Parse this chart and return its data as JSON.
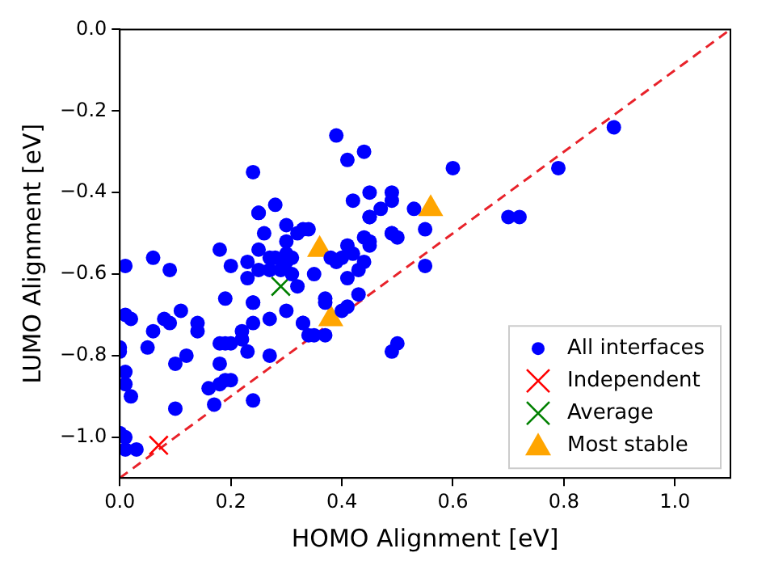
{
  "chart_data": {
    "type": "scatter",
    "xlabel": "HOMO Alignment [eV]",
    "ylabel": "LUMO Alignment [eV]",
    "xlim": [
      0,
      1.1
    ],
    "ylim": [
      -1.1,
      0
    ],
    "xticks": [
      {
        "value": 0,
        "label": "0.0"
      },
      {
        "value": 0.2,
        "label": "0.2"
      },
      {
        "value": 0.4,
        "label": "0.4"
      },
      {
        "value": 0.6,
        "label": "0.6"
      },
      {
        "value": 0.8,
        "label": "0.8"
      },
      {
        "value": 1,
        "label": "1.0"
      }
    ],
    "yticks": [
      {
        "value": -1,
        "label": "−1.0"
      },
      {
        "value": -0.8,
        "label": "−0.8"
      },
      {
        "value": -0.6,
        "label": "−0.6"
      },
      {
        "value": -0.4,
        "label": "−0.4"
      },
      {
        "value": -0.2,
        "label": "−0.2"
      },
      {
        "value": 0,
        "label": "0.0"
      }
    ],
    "grid": false,
    "legend": "bottom right",
    "series": [
      {
        "name": "All interfaces",
        "marker": "circle",
        "color": "#0000ff",
        "x": [
          0.24,
          0.25,
          0.25,
          0.28,
          0.3,
          0.26,
          0.32,
          0.33,
          0.3,
          0.25,
          0.18,
          0.06,
          0.01,
          0.09,
          0.2,
          0.23,
          0.27,
          0.28,
          0.3,
          0.31,
          0.3,
          0.25,
          0.27,
          0.31,
          0.29,
          0.23,
          0.32,
          0.35,
          0.19,
          0.24,
          0.24,
          0.01,
          0.02,
          0.08,
          0.09,
          0.11,
          0.06,
          0.14,
          0.14,
          0.24,
          0.27,
          0.3,
          0.33,
          0.22,
          0.22,
          0.18,
          0.19,
          0.2,
          0,
          0,
          0.05,
          0.23,
          0.27,
          0.34,
          0.35,
          0.12,
          0.1,
          0.18,
          0.01,
          0.01,
          0.02,
          0.16,
          0.18,
          0.19,
          0.2,
          0.17,
          0.24,
          0.1,
          0,
          0.01,
          0.01,
          0.03,
          0.39,
          0.44,
          0.41,
          0.6,
          0.45,
          0.49,
          0.49,
          0.42,
          0.53,
          0.47,
          0.45,
          0.45,
          0.34,
          0.44,
          0.45,
          0.45,
          0.49,
          0.49,
          0.5,
          0.55,
          0.41,
          0.42,
          0.38,
          0.39,
          0.4,
          0.44,
          0.43,
          0.41,
          0.55,
          0.43,
          0.37,
          0.37,
          0.4,
          0.41,
          0.33,
          0.37,
          0.49,
          0.5,
          0.89,
          0.79,
          0.7,
          0.72
        ],
        "values": [
          -0.35,
          -0.45,
          -0.45,
          -0.43,
          -0.48,
          -0.5,
          -0.5,
          -0.49,
          -0.52,
          -0.54,
          -0.54,
          -0.56,
          -0.58,
          -0.59,
          -0.58,
          -0.57,
          -0.56,
          -0.56,
          -0.55,
          -0.56,
          -0.57,
          -0.59,
          -0.59,
          -0.6,
          -0.59,
          -0.61,
          -0.63,
          -0.6,
          -0.66,
          -0.67,
          -0.67,
          -0.7,
          -0.71,
          -0.71,
          -0.72,
          -0.69,
          -0.74,
          -0.72,
          -0.74,
          -0.72,
          -0.71,
          -0.69,
          -0.72,
          -0.74,
          -0.76,
          -0.77,
          -0.77,
          -0.77,
          -0.78,
          -0.79,
          -0.78,
          -0.79,
          -0.8,
          -0.75,
          -0.75,
          -0.8,
          -0.82,
          -0.82,
          -0.84,
          -0.87,
          -0.9,
          -0.88,
          -0.87,
          -0.86,
          -0.86,
          -0.92,
          -0.91,
          -0.93,
          -0.99,
          -1,
          -1.03,
          -1.03,
          -0.26,
          -0.3,
          -0.32,
          -0.34,
          -0.4,
          -0.4,
          -0.42,
          -0.42,
          -0.44,
          -0.44,
          -0.46,
          -0.46,
          -0.49,
          -0.51,
          -0.52,
          -0.53,
          -0.5,
          -0.5,
          -0.51,
          -0.49,
          -0.53,
          -0.55,
          -0.56,
          -0.57,
          -0.56,
          -0.57,
          -0.59,
          -0.61,
          -0.58,
          -0.65,
          -0.66,
          -0.67,
          -0.69,
          -0.68,
          -0.72,
          -0.75,
          -0.79,
          -0.77,
          -0.24,
          -0.34,
          -0.46,
          -0.46
        ]
      },
      {
        "name": "Independent",
        "marker": "cross",
        "color": "#ff0000",
        "x": [
          0.07
        ],
        "values": [
          -1.02
        ]
      },
      {
        "name": "Average",
        "marker": "cross",
        "color": "#008000",
        "x": [
          0.29
        ],
        "values": [
          -0.63
        ]
      },
      {
        "name": "Most stable",
        "marker": "triangle",
        "color": "#ffa500",
        "x": [
          0.36,
          0.56,
          0.38
        ],
        "values": [
          -0.54,
          -0.44,
          -0.71
        ]
      },
      {
        "type": "line",
        "line_style": "dashed",
        "marker": "none",
        "color": "#e8222a",
        "x": [
          0,
          1.1
        ],
        "values": [
          -1.1,
          0
        ]
      }
    ]
  }
}
